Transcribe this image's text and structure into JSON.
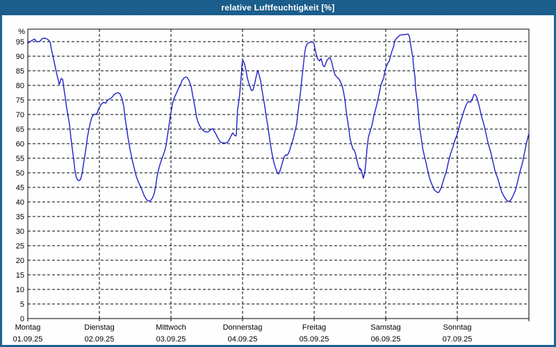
{
  "window": {
    "title": "relative Luftfeuchtigkeit [%]"
  },
  "colors": {
    "chrome": "#1d6394",
    "title_text": "#ffffff",
    "plot_bg": "#fdfefd",
    "frame": "#000000",
    "grid": "#000000",
    "axis_text": "#000000",
    "curve": "#1f1fc8"
  },
  "chart_data": {
    "type": "line",
    "title": "relative Luftfeuchtigkeit [%]",
    "ylabel": "%",
    "xlabel": "",
    "ylim": [
      0,
      99
    ],
    "yticks": [
      95,
      90,
      85,
      80,
      75,
      70,
      65,
      60,
      55,
      50,
      45,
      40,
      35,
      30,
      25,
      20,
      15,
      10,
      5,
      0
    ],
    "grid": "dashed",
    "legend": "none",
    "x_unit": "hours from Monday 00:00",
    "x_range_hours": [
      0,
      168
    ],
    "days": [
      {
        "label": "Montag",
        "date": "01.09.25"
      },
      {
        "label": "Dienstag",
        "date": "02.09.25"
      },
      {
        "label": "Mittwoch",
        "date": "03.09.25"
      },
      {
        "label": "Donnerstag",
        "date": "04.09.25"
      },
      {
        "label": "Freitag",
        "date": "05.09.25"
      },
      {
        "label": "Samstag",
        "date": "06.09.25"
      },
      {
        "label": "Sonntag",
        "date": "07.09.25"
      }
    ],
    "series": [
      {
        "name": "relative Luftfeuchtigkeit",
        "color": "#1f1fc8",
        "points": [
          [
            0,
            94.4
          ],
          [
            1.2,
            95.3
          ],
          [
            2.3,
            95.9
          ],
          [
            3,
            94.9
          ],
          [
            4,
            95.1
          ],
          [
            4.9,
            96.1
          ],
          [
            5.8,
            96.2
          ],
          [
            6.8,
            95.7
          ],
          [
            7.5,
            94.8
          ],
          [
            7.9,
            92.5
          ],
          [
            8.4,
            90
          ],
          [
            8.9,
            87.8
          ],
          [
            9.3,
            85.8
          ],
          [
            9.8,
            83.5
          ],
          [
            10.3,
            81.5
          ],
          [
            10.5,
            80.4
          ],
          [
            10.7,
            80.7
          ],
          [
            11.2,
            82.4
          ],
          [
            11.7,
            82
          ],
          [
            12.1,
            79
          ],
          [
            12.6,
            75.5
          ],
          [
            13,
            72.5
          ],
          [
            13.5,
            69.5
          ],
          [
            14,
            66.5
          ],
          [
            14.4,
            62.5
          ],
          [
            14.9,
            58.5
          ],
          [
            15.4,
            54.5
          ],
          [
            15.8,
            50.8
          ],
          [
            16.3,
            48.3
          ],
          [
            16.8,
            47.5
          ],
          [
            17.2,
            47.3
          ],
          [
            17.7,
            47.8
          ],
          [
            18.2,
            49.8
          ],
          [
            18.6,
            52.5
          ],
          [
            19.1,
            55.8
          ],
          [
            19.6,
            59
          ],
          [
            20,
            62.3
          ],
          [
            20.5,
            65
          ],
          [
            21,
            67.3
          ],
          [
            21.4,
            68.8
          ],
          [
            21.9,
            69.8
          ],
          [
            22.4,
            70.1
          ],
          [
            22.8,
            70
          ],
          [
            23.3,
            70.6
          ],
          [
            23.7,
            71.8
          ],
          [
            24,
            72.4
          ],
          [
            24.7,
            73.6
          ],
          [
            25.4,
            74.2
          ],
          [
            26.1,
            73.9
          ],
          [
            26.8,
            75
          ],
          [
            27.5,
            75.4
          ],
          [
            28.2,
            75.9
          ],
          [
            28.9,
            76.8
          ],
          [
            29.6,
            77.3
          ],
          [
            30.3,
            77.5
          ],
          [
            31,
            77
          ],
          [
            31.7,
            75.2
          ],
          [
            32.2,
            72.5
          ],
          [
            32.6,
            69
          ],
          [
            33.1,
            65.5
          ],
          [
            33.6,
            62
          ],
          [
            34.3,
            58
          ],
          [
            35,
            54.5
          ],
          [
            35.7,
            51.5
          ],
          [
            36.3,
            49
          ],
          [
            37,
            47
          ],
          [
            37.7,
            45.5
          ],
          [
            38.4,
            43.8
          ],
          [
            39.1,
            42
          ],
          [
            39.8,
            40.8
          ],
          [
            40.5,
            40.3
          ],
          [
            41.2,
            40.5
          ],
          [
            41.9,
            41.5
          ],
          [
            42.4,
            43
          ],
          [
            42.9,
            45.5
          ],
          [
            43.3,
            48.5
          ],
          [
            43.8,
            51
          ],
          [
            44.5,
            53.5
          ],
          [
            45.2,
            55.5
          ],
          [
            45.9,
            57.5
          ],
          [
            46.4,
            59.5
          ],
          [
            46.8,
            62.5
          ],
          [
            47.3,
            66
          ],
          [
            47.8,
            69.5
          ],
          [
            48.2,
            72
          ],
          [
            48.7,
            74.5
          ],
          [
            49.2,
            76
          ],
          [
            49.6,
            76.8
          ],
          [
            50.1,
            78
          ],
          [
            50.8,
            79.5
          ],
          [
            51.3,
            80.5
          ],
          [
            51.7,
            81.7
          ],
          [
            52.4,
            82.6
          ],
          [
            53.1,
            82.9
          ],
          [
            53.6,
            82.5
          ],
          [
            54.1,
            81.5
          ],
          [
            54.8,
            79.5
          ],
          [
            55.2,
            77
          ],
          [
            55.7,
            74.5
          ],
          [
            56.2,
            71.5
          ],
          [
            56.6,
            69
          ],
          [
            57.1,
            67.3
          ],
          [
            57.8,
            65.8
          ],
          [
            58.5,
            64.8
          ],
          [
            59.2,
            64.2
          ],
          [
            59.9,
            64
          ],
          [
            60.6,
            64.1
          ],
          [
            61.3,
            64.8
          ],
          [
            62,
            65.2
          ],
          [
            62.4,
            64.5
          ],
          [
            63.1,
            63.2
          ],
          [
            63.8,
            61.8
          ],
          [
            64.5,
            60.6
          ],
          [
            65.2,
            60.3
          ],
          [
            66.2,
            60.2
          ],
          [
            66.9,
            60.4
          ],
          [
            67.6,
            61.5
          ],
          [
            68.3,
            63
          ],
          [
            68.7,
            63.7
          ],
          [
            69.2,
            63
          ],
          [
            69.7,
            62.6
          ],
          [
            69.9,
            63
          ],
          [
            70.1,
            67
          ],
          [
            70.3,
            71.5
          ],
          [
            70.6,
            73.4
          ],
          [
            71,
            76.5
          ],
          [
            71.3,
            80
          ],
          [
            71.6,
            84
          ],
          [
            71.8,
            87
          ],
          [
            72,
            88.6
          ],
          [
            72.2,
            88.5
          ],
          [
            72.7,
            87.2
          ],
          [
            73.2,
            85
          ],
          [
            73.6,
            82.5
          ],
          [
            74.1,
            80.8
          ],
          [
            74.6,
            79.3
          ],
          [
            75,
            78.2
          ],
          [
            75.5,
            78.4
          ],
          [
            76,
            80.3
          ],
          [
            76.4,
            82.3
          ],
          [
            76.9,
            84.5
          ],
          [
            77.1,
            85.1
          ],
          [
            77.6,
            83.5
          ],
          [
            78.1,
            81.3
          ],
          [
            78.5,
            78.5
          ],
          [
            79,
            75.5
          ],
          [
            79.5,
            72.5
          ],
          [
            79.9,
            69.5
          ],
          [
            80.4,
            66.5
          ],
          [
            80.9,
            63
          ],
          [
            81.3,
            60
          ],
          [
            81.8,
            57
          ],
          [
            82.3,
            54.5
          ],
          [
            82.7,
            52.8
          ],
          [
            83.2,
            51.2
          ],
          [
            83.7,
            49.9
          ],
          [
            84.1,
            49.6
          ],
          [
            84.6,
            50.8
          ],
          [
            85.1,
            52.5
          ],
          [
            85.5,
            54
          ],
          [
            86,
            55.5
          ],
          [
            86.5,
            56.2
          ],
          [
            86.9,
            56
          ],
          [
            87.4,
            56.7
          ],
          [
            87.9,
            58
          ],
          [
            88.3,
            59.5
          ],
          [
            88.8,
            61
          ],
          [
            89.3,
            63
          ],
          [
            89.7,
            64.7
          ],
          [
            90.2,
            67
          ],
          [
            90.4,
            69.4
          ],
          [
            90.9,
            73.4
          ],
          [
            91.4,
            77.4
          ],
          [
            91.8,
            81.5
          ],
          [
            92.3,
            86
          ],
          [
            92.8,
            91
          ],
          [
            93.2,
            93.2
          ],
          [
            93.7,
            94.3
          ],
          [
            94.4,
            94.7
          ],
          [
            95.1,
            94.9
          ],
          [
            95.6,
            94.8
          ],
          [
            96,
            94.2
          ],
          [
            96.2,
            92.8
          ],
          [
            97.1,
            89.2
          ],
          [
            97.8,
            88.4
          ],
          [
            98.3,
            89.2
          ],
          [
            99,
            86.8
          ],
          [
            99.5,
            86.4
          ],
          [
            100.2,
            88.4
          ],
          [
            100.9,
            89.4
          ],
          [
            101.4,
            89.5
          ],
          [
            102,
            87.6
          ],
          [
            102.5,
            85.2
          ],
          [
            103,
            83.6
          ],
          [
            103.7,
            82.8
          ],
          [
            104.4,
            82.1
          ],
          [
            105.3,
            80.1
          ],
          [
            105.8,
            78
          ],
          [
            106.3,
            75.2
          ],
          [
            106.7,
            71.5
          ],
          [
            107.2,
            68
          ],
          [
            107.7,
            64.5
          ],
          [
            108.1,
            61.5
          ],
          [
            108.6,
            59.5
          ],
          [
            109.1,
            58
          ],
          [
            109.4,
            57.9
          ],
          [
            109.8,
            56.8
          ],
          [
            110.7,
            52.8
          ],
          [
            111.2,
            51.2
          ],
          [
            111.4,
            51.6
          ],
          [
            111.6,
            50.8
          ],
          [
            111.8,
            51
          ],
          [
            112.3,
            48.9
          ],
          [
            112.5,
            48.1
          ],
          [
            113,
            50.4
          ],
          [
            113.5,
            55.2
          ],
          [
            113.7,
            58.3
          ],
          [
            114.2,
            62.3
          ],
          [
            114.9,
            64.7
          ],
          [
            115.3,
            65.9
          ],
          [
            116,
            69.4
          ],
          [
            117,
            73.4
          ],
          [
            117.7,
            76.6
          ],
          [
            118.4,
            80.1
          ],
          [
            119.3,
            82.5
          ],
          [
            119.8,
            85.2
          ],
          [
            120.2,
            86.5
          ],
          [
            120.7,
            87.7
          ],
          [
            121.2,
            88.3
          ],
          [
            121.6,
            90
          ],
          [
            122.1,
            91.8
          ],
          [
            122.6,
            93.2
          ],
          [
            123,
            95.2
          ],
          [
            123.5,
            96
          ],
          [
            124,
            96.5
          ],
          [
            124.7,
            97.2
          ],
          [
            125.4,
            97.4
          ],
          [
            126.1,
            97.4
          ],
          [
            126.8,
            97.5
          ],
          [
            127.5,
            97.6
          ],
          [
            127.9,
            97
          ],
          [
            128.2,
            95
          ],
          [
            128.6,
            92.4
          ],
          [
            129.1,
            89.5
          ],
          [
            129.3,
            86.8
          ],
          [
            129.8,
            82.9
          ],
          [
            130,
            78.9
          ],
          [
            130.5,
            75
          ],
          [
            130.9,
            71
          ],
          [
            131.2,
            67.1
          ],
          [
            131.6,
            63.9
          ],
          [
            132.1,
            60.7
          ],
          [
            132.4,
            58.3
          ],
          [
            133.3,
            54.4
          ],
          [
            134,
            51.2
          ],
          [
            134.7,
            48.1
          ],
          [
            135.6,
            45.7
          ],
          [
            136.3,
            44.1
          ],
          [
            137,
            43.5
          ],
          [
            137.5,
            43.2
          ],
          [
            137.9,
            43.4
          ],
          [
            138.6,
            44.9
          ],
          [
            139.3,
            47.3
          ],
          [
            140.3,
            50.4
          ],
          [
            141,
            53.6
          ],
          [
            141.7,
            56.4
          ],
          [
            142.6,
            59.1
          ],
          [
            143.3,
            61.5
          ],
          [
            143.8,
            62.7
          ],
          [
            144.5,
            65
          ],
          [
            144.9,
            67
          ],
          [
            145.6,
            69.2
          ],
          [
            146.3,
            71.5
          ],
          [
            147,
            73.4
          ],
          [
            147.7,
            74.5
          ],
          [
            148.4,
            74.2
          ],
          [
            148.9,
            75
          ],
          [
            149.6,
            76.8
          ],
          [
            150,
            76.9
          ],
          [
            150.5,
            76
          ],
          [
            151.4,
            72.6
          ],
          [
            152.1,
            69.4
          ],
          [
            153,
            66.3
          ],
          [
            153.7,
            63.1
          ],
          [
            154.4,
            59.9
          ],
          [
            155.3,
            56.8
          ],
          [
            156,
            53.6
          ],
          [
            156.7,
            50.4
          ],
          [
            157.7,
            47.7
          ],
          [
            158.4,
            44.9
          ],
          [
            159.1,
            42.9
          ],
          [
            160,
            41.3
          ],
          [
            160.7,
            40.4
          ],
          [
            161.4,
            40.2
          ],
          [
            161.8,
            40.5
          ],
          [
            162.5,
            41.7
          ],
          [
            163.5,
            44.1
          ],
          [
            164.2,
            46.9
          ],
          [
            164.9,
            50
          ],
          [
            165.8,
            53.2
          ],
          [
            166.5,
            56.8
          ],
          [
            167.2,
            60.3
          ],
          [
            168,
            63.5
          ]
        ]
      }
    ]
  }
}
